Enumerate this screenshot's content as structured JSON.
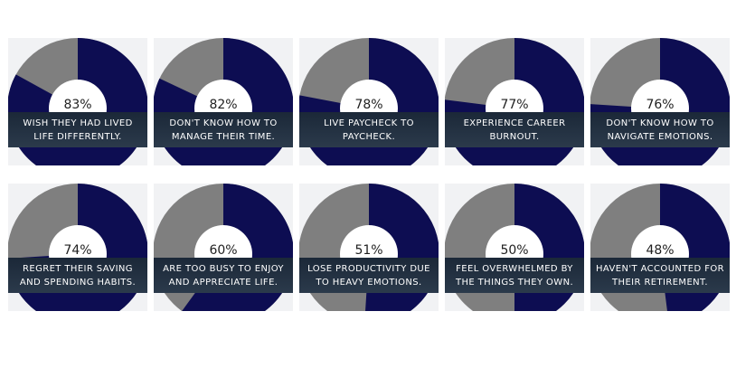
{
  "chart_data": [
    {
      "type": "pie",
      "value": 83,
      "label": "83%",
      "caption": "WISH THEY HAD LIVED\nLIFE DIFFERENTLY."
    },
    {
      "type": "pie",
      "value": 82,
      "label": "82%",
      "caption": "DON'T KNOW HOW TO\nMANAGE THEIR TIME."
    },
    {
      "type": "pie",
      "value": 78,
      "label": "78%",
      "caption": "LIVE PAYCHECK TO\nPAYCHECK."
    },
    {
      "type": "pie",
      "value": 77,
      "label": "77%",
      "caption": "EXPERIENCE CAREER\nBURNOUT."
    },
    {
      "type": "pie",
      "value": 76,
      "label": "76%",
      "caption": "DON'T KNOW HOW TO\nNAVIGATE EMOTIONS."
    },
    {
      "type": "pie",
      "value": 74,
      "label": "74%",
      "caption": "REGRET THEIR SAVING\nAND SPENDING HABITS."
    },
    {
      "type": "pie",
      "value": 60,
      "label": "60%",
      "caption": "ARE TOO BUSY TO ENJOY\nAND APPRECIATE LIFE."
    },
    {
      "type": "pie",
      "value": 51,
      "label": "51%",
      "caption": "LOSE PRODUCTIVITY DUE\nTO HEAVY EMOTIONS."
    },
    {
      "type": "pie",
      "value": 50,
      "label": "50%",
      "caption": "FEEL OVERWHELMED BY\nTHE THINGS THEY OWN."
    },
    {
      "type": "pie",
      "value": 48,
      "label": "48%",
      "caption": "HAVEN'T ACCOUNTED FOR\nTHEIR RETIREMENT."
    }
  ],
  "colors": {
    "value": "#0d0d52",
    "remainder": "#7f7f7f",
    "center": "#ffffff",
    "label_bg": "#1f2d3d"
  }
}
